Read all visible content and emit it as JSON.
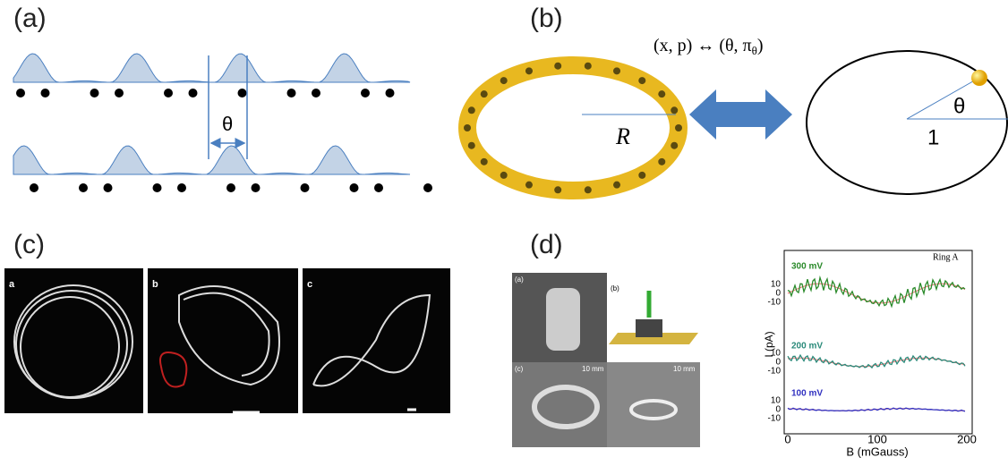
{
  "panels": {
    "a": {
      "label": "(a)",
      "angle": "θ"
    },
    "b": {
      "label": "(b)",
      "eq_left": "(x, p) ↔ (θ, π",
      "eq_sub": "θ",
      "eq_right": ")",
      "radius": "R",
      "angle": "θ",
      "unit": "1"
    },
    "c": {
      "label": "(c)",
      "photos": [
        "a",
        "b",
        "c"
      ]
    },
    "d": {
      "label": "(d)",
      "photos": [
        "(a)",
        "(b)",
        "(c)"
      ],
      "scale_bars": [
        "10 mm",
        "10 mm"
      ],
      "plot": {
        "title": "Ring A",
        "traces": [
          "300 mV",
          "200 mV",
          "100 mV"
        ],
        "y_label": "I (pA)",
        "x_label": "B (mGauss)",
        "x_ticks": [
          "0",
          "100",
          "200"
        ],
        "y_ticks": [
          "10",
          "0",
          "-10"
        ]
      }
    }
  }
}
